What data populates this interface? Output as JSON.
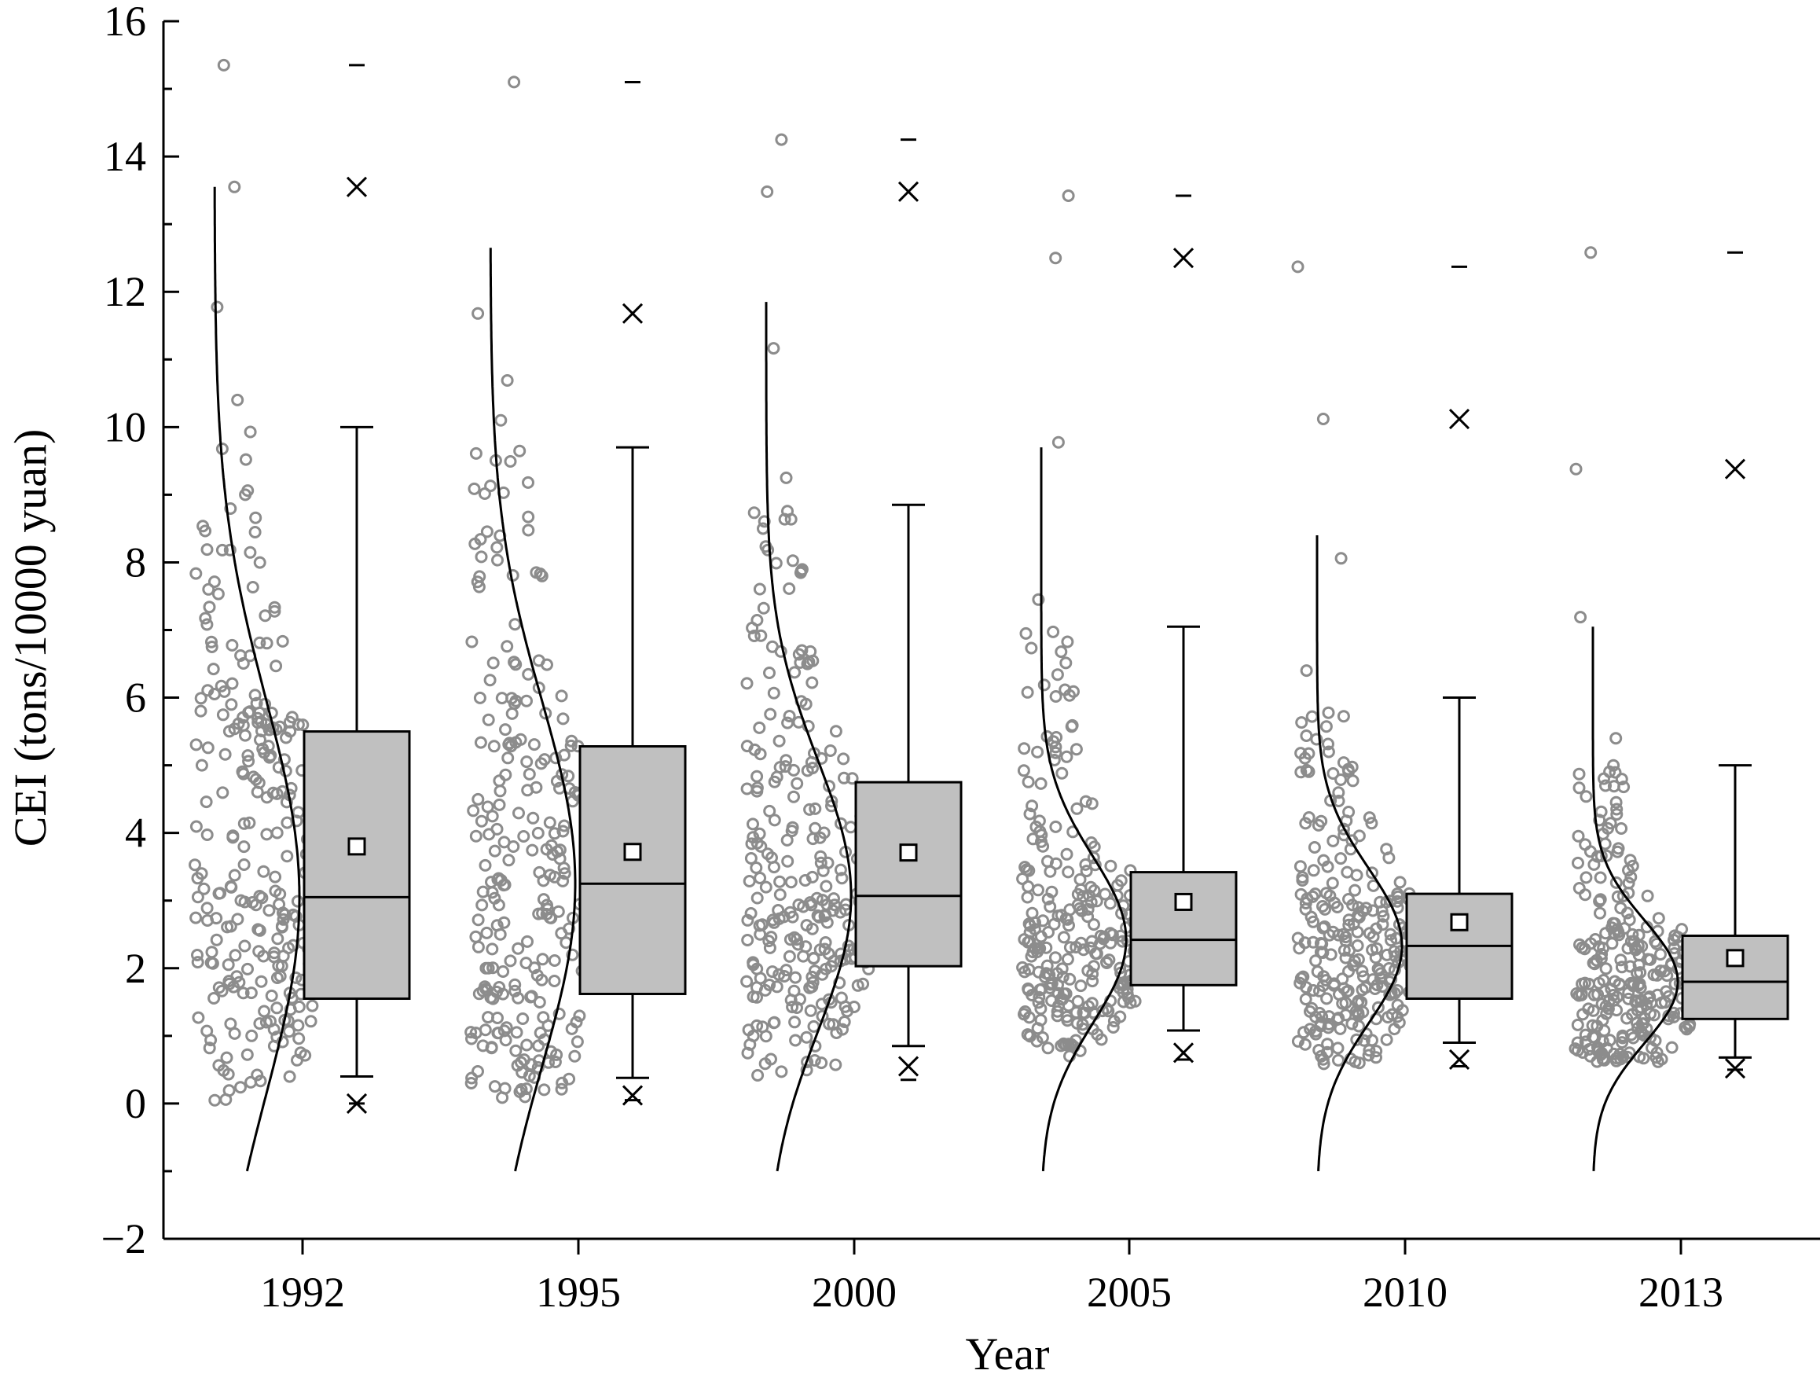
{
  "chart_data": {
    "type": "box",
    "xlabel": "Year",
    "ylabel": "CEI (tons/10000 yuan)",
    "ylim": [
      -2,
      16
    ],
    "yticks": [
      -2,
      0,
      2,
      4,
      6,
      8,
      10,
      12,
      14,
      16
    ],
    "ytick_labels": [
      "−2",
      "0",
      "2",
      "4",
      "6",
      "8",
      "10",
      "12",
      "14",
      "16"
    ],
    "categories": [
      "1992",
      "1995",
      "2000",
      "2005",
      "2010",
      "2013"
    ],
    "grid": false,
    "legend": "none",
    "colors": {
      "box_fill": "#c0c0c0",
      "points": "#8c8c8c",
      "lines": "#000000"
    },
    "series": [
      {
        "category": "1992",
        "q1": 1.55,
        "median": 3.05,
        "q3": 5.5,
        "mean": 3.8,
        "whisker_low": 0.4,
        "whisker_high": 10.0,
        "p1": 0.0,
        "p99": 13.55,
        "min": 0.0,
        "max": 15.35,
        "curve_top": 13.55
      },
      {
        "category": "1995",
        "q1": 1.62,
        "median": 3.25,
        "q3": 5.28,
        "mean": 3.72,
        "whisker_low": 0.38,
        "whisker_high": 9.7,
        "p1": 0.12,
        "p99": 11.68,
        "min": 0.05,
        "max": 15.1,
        "curve_top": 12.65
      },
      {
        "category": "2000",
        "q1": 2.03,
        "median": 3.07,
        "q3": 4.75,
        "mean": 3.71,
        "whisker_low": 0.85,
        "whisker_high": 8.85,
        "p1": 0.55,
        "p99": 13.48,
        "min": 0.35,
        "max": 14.25,
        "curve_top": 11.85
      },
      {
        "category": "2005",
        "q1": 1.75,
        "median": 2.42,
        "q3": 3.42,
        "mean": 2.98,
        "whisker_low": 1.08,
        "whisker_high": 7.05,
        "p1": 0.75,
        "p99": 12.5,
        "min": 0.65,
        "max": 13.42,
        "curve_top": 9.7
      },
      {
        "category": "2010",
        "q1": 1.55,
        "median": 2.33,
        "q3": 3.1,
        "mean": 2.68,
        "whisker_low": 0.9,
        "whisker_high": 6.0,
        "p1": 0.65,
        "p99": 10.12,
        "min": 0.55,
        "max": 12.37,
        "curve_top": 8.4
      },
      {
        "category": "2013",
        "q1": 1.25,
        "median": 1.8,
        "q3": 2.48,
        "mean": 2.15,
        "whisker_low": 0.68,
        "whisker_high": 5.0,
        "p1": 0.52,
        "p99": 9.38,
        "min": 0.5,
        "max": 12.58,
        "curve_top": 7.05
      }
    ]
  }
}
